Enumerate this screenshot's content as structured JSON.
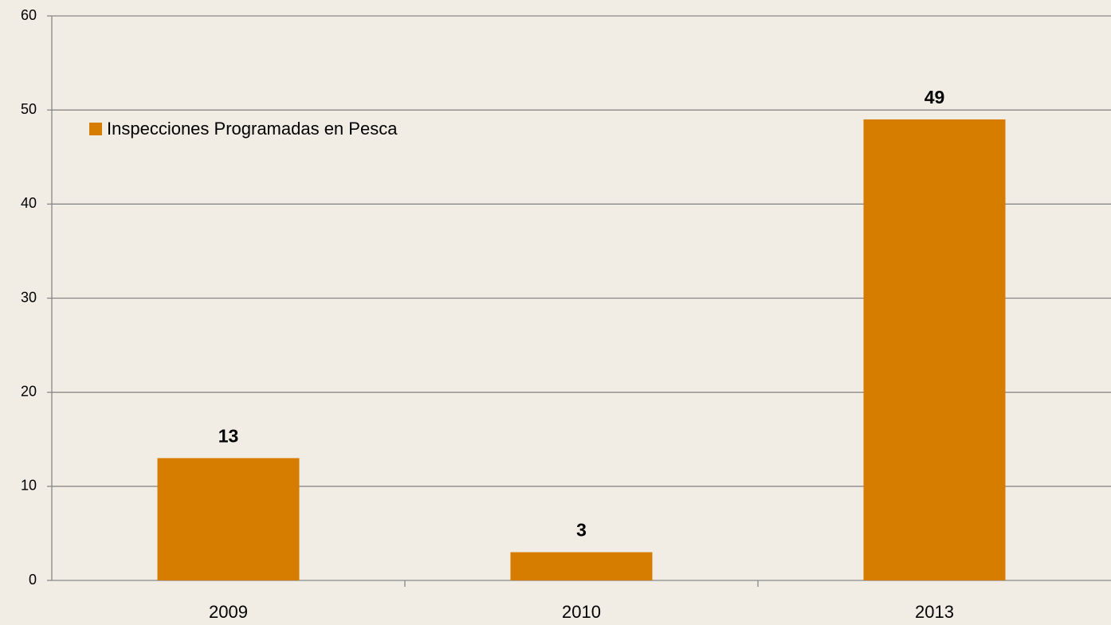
{
  "chart_data": {
    "type": "bar",
    "categories": [
      "2009",
      "2010",
      "2013"
    ],
    "series": [
      {
        "name": "Inspecciones Programadas en Pesca",
        "color": "#d67d00",
        "values": [
          13,
          3,
          49
        ]
      }
    ],
    "ylim": [
      0,
      60
    ],
    "yticks": [
      0,
      10,
      20,
      30,
      40,
      50,
      60
    ],
    "grid": true,
    "legend": "upper left"
  }
}
